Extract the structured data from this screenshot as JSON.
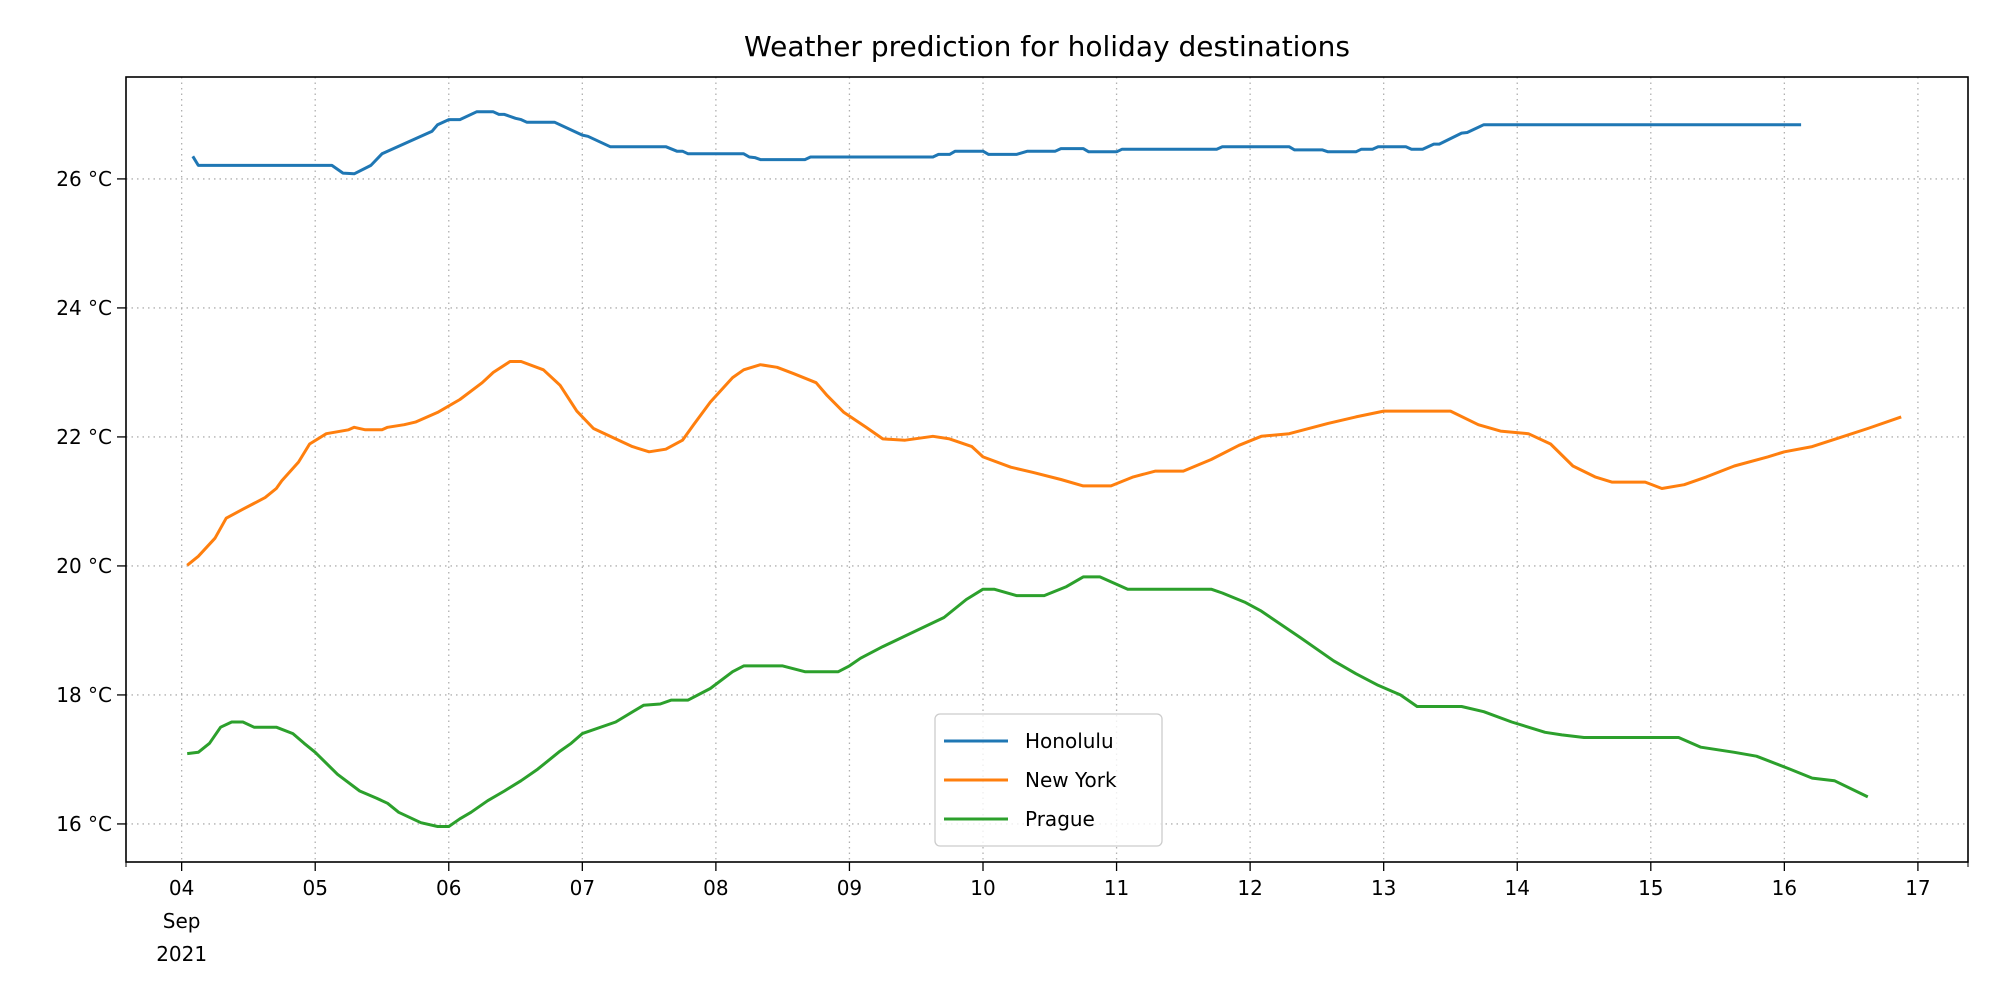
{
  "chart_data": {
    "type": "line",
    "title": "Weather prediction for holiday destinations",
    "xlabel": "",
    "ylabel": "",
    "xlim": [
      "2021-09-03T14",
      "2021-09-17T09"
    ],
    "ylim": [
      15.41,
      27.58
    ],
    "grid": true,
    "legend_position": "lower-center",
    "x_ticks": [
      {
        "date": "2021-09-04",
        "label": "04",
        "sub1": "Sep",
        "sub2": "2021"
      },
      {
        "date": "2021-09-05",
        "label": "05"
      },
      {
        "date": "2021-09-06",
        "label": "06"
      },
      {
        "date": "2021-09-07",
        "label": "07"
      },
      {
        "date": "2021-09-08",
        "label": "08"
      },
      {
        "date": "2021-09-09",
        "label": "09"
      },
      {
        "date": "2021-09-10",
        "label": "10"
      },
      {
        "date": "2021-09-11",
        "label": "11"
      },
      {
        "date": "2021-09-12",
        "label": "12"
      },
      {
        "date": "2021-09-13",
        "label": "13"
      },
      {
        "date": "2021-09-14",
        "label": "14"
      },
      {
        "date": "2021-09-15",
        "label": "15"
      },
      {
        "date": "2021-09-16",
        "label": "16"
      },
      {
        "date": "2021-09-17",
        "label": "17"
      }
    ],
    "y_ticks": [
      {
        "value": 16,
        "label": "16 °C"
      },
      {
        "value": 18,
        "label": "18 °C"
      },
      {
        "value": 20,
        "label": "20 °C"
      },
      {
        "value": 22,
        "label": "22 °C"
      },
      {
        "value": 24,
        "label": "24 °C"
      },
      {
        "value": 26,
        "label": "26 °C"
      }
    ],
    "series": [
      {
        "name": "Honolulu",
        "color": "#1f77b4",
        "points": [
          [
            "2021-09-04T02",
            26.35
          ],
          [
            "2021-09-04T03",
            26.21
          ],
          [
            "2021-09-05T03",
            26.21
          ],
          [
            "2021-09-05T05",
            26.09
          ],
          [
            "2021-09-05T07",
            26.08
          ],
          [
            "2021-09-05T10",
            26.21
          ],
          [
            "2021-09-05T12",
            26.39
          ],
          [
            "2021-09-05T21",
            26.74
          ],
          [
            "2021-09-05T22",
            26.84
          ],
          [
            "2021-09-06T00",
            26.92
          ],
          [
            "2021-09-06T02",
            26.92
          ],
          [
            "2021-09-06T05",
            27.04
          ],
          [
            "2021-09-06T08",
            27.04
          ],
          [
            "2021-09-06T09",
            27.0
          ],
          [
            "2021-09-06T10",
            27.0
          ],
          [
            "2021-09-06T12",
            26.94
          ],
          [
            "2021-09-06T13",
            26.92
          ],
          [
            "2021-09-06T14",
            26.88
          ],
          [
            "2021-09-06T19",
            26.88
          ],
          [
            "2021-09-07T00",
            26.68
          ],
          [
            "2021-09-07T01",
            26.66
          ],
          [
            "2021-09-07T05",
            26.5
          ],
          [
            "2021-09-07T15",
            26.5
          ],
          [
            "2021-09-07T17",
            26.43
          ],
          [
            "2021-09-07T18",
            26.43
          ],
          [
            "2021-09-07T19",
            26.39
          ],
          [
            "2021-09-08T05",
            26.39
          ],
          [
            "2021-09-08T06",
            26.34
          ],
          [
            "2021-09-08T07",
            26.33
          ],
          [
            "2021-09-08T08",
            26.3
          ],
          [
            "2021-09-08T16",
            26.3
          ],
          [
            "2021-09-08T17",
            26.34
          ],
          [
            "2021-09-09T15",
            26.34
          ],
          [
            "2021-09-09T16",
            26.38
          ],
          [
            "2021-09-09T18",
            26.38
          ],
          [
            "2021-09-09T19",
            26.43
          ],
          [
            "2021-09-10T00",
            26.43
          ],
          [
            "2021-09-10T01",
            26.38
          ],
          [
            "2021-09-10T06",
            26.38
          ],
          [
            "2021-09-10T08",
            26.43
          ],
          [
            "2021-09-10T13",
            26.43
          ],
          [
            "2021-09-10T14",
            26.47
          ],
          [
            "2021-09-10T18",
            26.47
          ],
          [
            "2021-09-10T19",
            26.42
          ],
          [
            "2021-09-11T00",
            26.42
          ],
          [
            "2021-09-11T01",
            26.46
          ],
          [
            "2021-09-11T18",
            26.46
          ],
          [
            "2021-09-11T19",
            26.5
          ],
          [
            "2021-09-12T07",
            26.5
          ],
          [
            "2021-09-12T08",
            26.45
          ],
          [
            "2021-09-12T13",
            26.45
          ],
          [
            "2021-09-12T14",
            26.42
          ],
          [
            "2021-09-12T19",
            26.42
          ],
          [
            "2021-09-12T20",
            26.46
          ],
          [
            "2021-09-12T22",
            26.46
          ],
          [
            "2021-09-12T23",
            26.5
          ],
          [
            "2021-09-13T04",
            26.5
          ],
          [
            "2021-09-13T05",
            26.46
          ],
          [
            "2021-09-13T07",
            26.46
          ],
          [
            "2021-09-13T09",
            26.54
          ],
          [
            "2021-09-13T10",
            26.54
          ],
          [
            "2021-09-13T14",
            26.71
          ],
          [
            "2021-09-13T15",
            26.72
          ],
          [
            "2021-09-13T18",
            26.84
          ],
          [
            "2021-09-16T03",
            26.84
          ]
        ]
      },
      {
        "name": "New York",
        "color": "#ff7f0e",
        "points": [
          [
            "2021-09-04T01",
            20.01
          ],
          [
            "2021-09-04T03",
            20.15
          ],
          [
            "2021-09-04T06",
            20.43
          ],
          [
            "2021-09-04T08",
            20.74
          ],
          [
            "2021-09-04T11",
            20.88
          ],
          [
            "2021-09-04T15",
            21.06
          ],
          [
            "2021-09-04T17",
            21.2
          ],
          [
            "2021-09-04T18",
            21.32
          ],
          [
            "2021-09-04T21",
            21.61
          ],
          [
            "2021-09-04T23",
            21.89
          ],
          [
            "2021-09-05T02",
            22.05
          ],
          [
            "2021-09-05T06",
            22.11
          ],
          [
            "2021-09-05T07",
            22.15
          ],
          [
            "2021-09-05T09",
            22.11
          ],
          [
            "2021-09-05T12",
            22.11
          ],
          [
            "2021-09-05T13",
            22.15
          ],
          [
            "2021-09-05T16",
            22.19
          ],
          [
            "2021-09-05T18",
            22.23
          ],
          [
            "2021-09-05T22",
            22.38
          ],
          [
            "2021-09-06T02",
            22.58
          ],
          [
            "2021-09-06T06",
            22.84
          ],
          [
            "2021-09-06T08",
            23.0
          ],
          [
            "2021-09-06T11",
            23.17
          ],
          [
            "2021-09-06T13",
            23.17
          ],
          [
            "2021-09-06T17",
            23.04
          ],
          [
            "2021-09-06T20",
            22.8
          ],
          [
            "2021-09-06T23",
            22.4
          ],
          [
            "2021-09-07T02",
            22.13
          ],
          [
            "2021-09-07T06",
            21.97
          ],
          [
            "2021-09-07T09",
            21.85
          ],
          [
            "2021-09-07T12",
            21.77
          ],
          [
            "2021-09-07T15",
            21.81
          ],
          [
            "2021-09-07T18",
            21.95
          ],
          [
            "2021-09-07T20",
            22.19
          ],
          [
            "2021-09-07T23",
            22.54
          ],
          [
            "2021-09-08T03",
            22.92
          ],
          [
            "2021-09-08T05",
            23.04
          ],
          [
            "2021-09-08T08",
            23.12
          ],
          [
            "2021-09-08T11",
            23.08
          ],
          [
            "2021-09-08T14",
            22.98
          ],
          [
            "2021-09-08T18",
            22.84
          ],
          [
            "2021-09-08T20",
            22.64
          ],
          [
            "2021-09-08T23",
            22.38
          ],
          [
            "2021-09-09T03",
            22.15
          ],
          [
            "2021-09-09T06",
            21.97
          ],
          [
            "2021-09-09T10",
            21.95
          ],
          [
            "2021-09-09T15",
            22.01
          ],
          [
            "2021-09-09T18",
            21.97
          ],
          [
            "2021-09-09T22",
            21.85
          ],
          [
            "2021-09-10T00",
            21.69
          ],
          [
            "2021-09-10T05",
            21.53
          ],
          [
            "2021-09-10T09",
            21.45
          ],
          [
            "2021-09-10T14",
            21.34
          ],
          [
            "2021-09-10T18",
            21.24
          ],
          [
            "2021-09-10T23",
            21.24
          ],
          [
            "2021-09-11T03",
            21.38
          ],
          [
            "2021-09-11T07",
            21.47
          ],
          [
            "2021-09-11T12",
            21.47
          ],
          [
            "2021-09-11T17",
            21.65
          ],
          [
            "2021-09-11T22",
            21.87
          ],
          [
            "2021-09-12T02",
            22.01
          ],
          [
            "2021-09-12T07",
            22.05
          ],
          [
            "2021-09-12T14",
            22.21
          ],
          [
            "2021-09-12T19",
            22.31
          ],
          [
            "2021-09-13T00",
            22.4
          ],
          [
            "2021-09-13T12",
            22.4
          ],
          [
            "2021-09-13T17",
            22.19
          ],
          [
            "2021-09-13T21",
            22.09
          ],
          [
            "2021-09-14T02",
            22.05
          ],
          [
            "2021-09-14T06",
            21.89
          ],
          [
            "2021-09-14T10",
            21.55
          ],
          [
            "2021-09-14T14",
            21.38
          ],
          [
            "2021-09-14T17",
            21.3
          ],
          [
            "2021-09-14T23",
            21.3
          ],
          [
            "2021-09-15T02",
            21.2
          ],
          [
            "2021-09-15T06",
            21.26
          ],
          [
            "2021-09-15T10",
            21.38
          ],
          [
            "2021-09-15T15",
            21.55
          ],
          [
            "2021-09-15T21",
            21.69
          ],
          [
            "2021-09-16T00",
            21.77
          ],
          [
            "2021-09-16T05",
            21.85
          ],
          [
            "2021-09-16T10",
            21.99
          ],
          [
            "2021-09-16T15",
            22.13
          ],
          [
            "2021-09-16T21",
            22.31
          ]
        ]
      },
      {
        "name": "Prague",
        "color": "#2ca02c",
        "points": [
          [
            "2021-09-04T01",
            17.09
          ],
          [
            "2021-09-04T03",
            17.11
          ],
          [
            "2021-09-04T05",
            17.25
          ],
          [
            "2021-09-04T07",
            17.5
          ],
          [
            "2021-09-04T09",
            17.58
          ],
          [
            "2021-09-04T11",
            17.58
          ],
          [
            "2021-09-04T13",
            17.5
          ],
          [
            "2021-09-04T17",
            17.5
          ],
          [
            "2021-09-04T20",
            17.4
          ],
          [
            "2021-09-04T22",
            17.25
          ],
          [
            "2021-09-05T00",
            17.11
          ],
          [
            "2021-09-05T04",
            16.77
          ],
          [
            "2021-09-05T08",
            16.51
          ],
          [
            "2021-09-05T11",
            16.4
          ],
          [
            "2021-09-05T13",
            16.32
          ],
          [
            "2021-09-05T15",
            16.18
          ],
          [
            "2021-09-05T19",
            16.02
          ],
          [
            "2021-09-05T22",
            15.96
          ],
          [
            "2021-09-06T00",
            15.96
          ],
          [
            "2021-09-06T02",
            16.08
          ],
          [
            "2021-09-06T04",
            16.18
          ],
          [
            "2021-09-06T07",
            16.36
          ],
          [
            "2021-09-06T10",
            16.51
          ],
          [
            "2021-09-06T13",
            16.67
          ],
          [
            "2021-09-06T16",
            16.85
          ],
          [
            "2021-09-06T20",
            17.13
          ],
          [
            "2021-09-06T22",
            17.25
          ],
          [
            "2021-09-07T00",
            17.4
          ],
          [
            "2021-09-07T06",
            17.58
          ],
          [
            "2021-09-07T11",
            17.84
          ],
          [
            "2021-09-07T14",
            17.86
          ],
          [
            "2021-09-07T16",
            17.92
          ],
          [
            "2021-09-07T19",
            17.92
          ],
          [
            "2021-09-07T23",
            18.1
          ],
          [
            "2021-09-08T03",
            18.36
          ],
          [
            "2021-09-08T05",
            18.45
          ],
          [
            "2021-09-08T12",
            18.45
          ],
          [
            "2021-09-08T16",
            18.36
          ],
          [
            "2021-09-08T22",
            18.36
          ],
          [
            "2021-09-09T00",
            18.45
          ],
          [
            "2021-09-09T02",
            18.57
          ],
          [
            "2021-09-09T06",
            18.75
          ],
          [
            "2021-09-09T17",
            19.2
          ],
          [
            "2021-09-09T21",
            19.48
          ],
          [
            "2021-09-10T00",
            19.64
          ],
          [
            "2021-09-10T02",
            19.64
          ],
          [
            "2021-09-10T06",
            19.54
          ],
          [
            "2021-09-10T11",
            19.54
          ],
          [
            "2021-09-10T15",
            19.68
          ],
          [
            "2021-09-10T18",
            19.83
          ],
          [
            "2021-09-10T21",
            19.83
          ],
          [
            "2021-09-11T02",
            19.64
          ],
          [
            "2021-09-11T17",
            19.64
          ],
          [
            "2021-09-11T19",
            19.58
          ],
          [
            "2021-09-11T23",
            19.44
          ],
          [
            "2021-09-12T02",
            19.3
          ],
          [
            "2021-09-12T09",
            18.89
          ],
          [
            "2021-09-12T15",
            18.53
          ],
          [
            "2021-09-12T19",
            18.33
          ],
          [
            "2021-09-12T23",
            18.15
          ],
          [
            "2021-09-13T03",
            18.0
          ],
          [
            "2021-09-13T06",
            17.82
          ],
          [
            "2021-09-13T14",
            17.82
          ],
          [
            "2021-09-13T18",
            17.74
          ],
          [
            "2021-09-13T23",
            17.58
          ],
          [
            "2021-09-14T05",
            17.42
          ],
          [
            "2021-09-14T08",
            17.38
          ],
          [
            "2021-09-14T12",
            17.34
          ],
          [
            "2021-09-15T05",
            17.34
          ],
          [
            "2021-09-15T09",
            17.19
          ],
          [
            "2021-09-15T15",
            17.11
          ],
          [
            "2021-09-15T19",
            17.05
          ],
          [
            "2021-09-16T01",
            16.85
          ],
          [
            "2021-09-16T05",
            16.71
          ],
          [
            "2021-09-16T09",
            16.67
          ],
          [
            "2021-09-16T15",
            16.42
          ]
        ]
      }
    ]
  }
}
